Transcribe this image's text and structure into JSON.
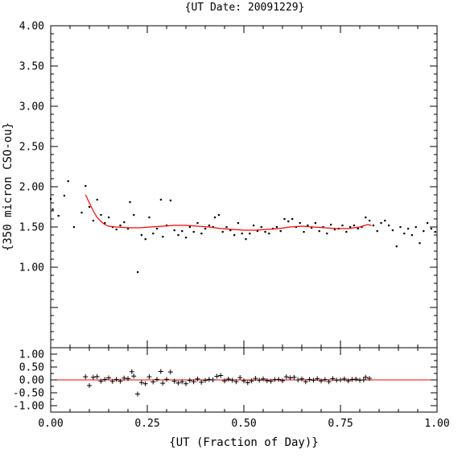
{
  "chart_data": [
    {
      "type": "scatter",
      "panel": "main",
      "title": "{UT Date: 20091229}",
      "xlabel": "",
      "ylabel": "{350 micron CSO-ou}",
      "xlim": [
        0.0,
        1.0
      ],
      "ylim": [
        0.0,
        4.0
      ],
      "yticks": [
        "1.00",
        "1.50",
        "2.00",
        "2.50",
        "3.00",
        "3.50",
        "4.00"
      ],
      "grid": false,
      "fit_color": "#ff0000",
      "points": [
        [
          0.0,
          1.85
        ],
        [
          0.005,
          1.72
        ],
        [
          0.02,
          1.64
        ],
        [
          0.035,
          1.89
        ],
        [
          0.045,
          2.07
        ],
        [
          0.06,
          1.5
        ],
        [
          0.08,
          1.68
        ],
        [
          0.09,
          2.01
        ],
        [
          0.1,
          1.75
        ],
        [
          0.11,
          1.58
        ],
        [
          0.12,
          1.84
        ],
        [
          0.13,
          1.65
        ],
        [
          0.14,
          1.55
        ],
        [
          0.15,
          1.62
        ],
        [
          0.16,
          1.5
        ],
        [
          0.17,
          1.47
        ],
        [
          0.18,
          1.52
        ],
        [
          0.19,
          1.56
        ],
        [
          0.2,
          1.48
        ],
        [
          0.205,
          1.81
        ],
        [
          0.215,
          1.65
        ],
        [
          0.225,
          0.94
        ],
        [
          0.235,
          1.4
        ],
        [
          0.245,
          1.35
        ],
        [
          0.255,
          1.62
        ],
        [
          0.265,
          1.42
        ],
        [
          0.275,
          1.48
        ],
        [
          0.285,
          1.84
        ],
        [
          0.29,
          1.38
        ],
        [
          0.3,
          1.52
        ],
        [
          0.31,
          1.83
        ],
        [
          0.32,
          1.46
        ],
        [
          0.33,
          1.4
        ],
        [
          0.34,
          1.45
        ],
        [
          0.35,
          1.37
        ],
        [
          0.36,
          1.5
        ],
        [
          0.37,
          1.44
        ],
        [
          0.38,
          1.55
        ],
        [
          0.39,
          1.42
        ],
        [
          0.4,
          1.48
        ],
        [
          0.41,
          1.52
        ],
        [
          0.42,
          1.5
        ],
        [
          0.425,
          1.62
        ],
        [
          0.435,
          1.65
        ],
        [
          0.445,
          1.44
        ],
        [
          0.455,
          1.5
        ],
        [
          0.465,
          1.46
        ],
        [
          0.475,
          1.4
        ],
        [
          0.485,
          1.55
        ],
        [
          0.495,
          1.42
        ],
        [
          0.505,
          1.35
        ],
        [
          0.515,
          1.42
        ],
        [
          0.525,
          1.52
        ],
        [
          0.535,
          1.45
        ],
        [
          0.545,
          1.5
        ],
        [
          0.555,
          1.44
        ],
        [
          0.565,
          1.42
        ],
        [
          0.575,
          1.48
        ],
        [
          0.585,
          1.5
        ],
        [
          0.595,
          1.45
        ],
        [
          0.605,
          1.6
        ],
        [
          0.615,
          1.57
        ],
        [
          0.625,
          1.6
        ],
        [
          0.635,
          1.5
        ],
        [
          0.645,
          1.55
        ],
        [
          0.655,
          1.44
        ],
        [
          0.665,
          1.52
        ],
        [
          0.675,
          1.49
        ],
        [
          0.685,
          1.55
        ],
        [
          0.695,
          1.45
        ],
        [
          0.705,
          1.5
        ],
        [
          0.715,
          1.42
        ],
        [
          0.725,
          1.53
        ],
        [
          0.735,
          1.47
        ],
        [
          0.745,
          1.48
        ],
        [
          0.755,
          1.52
        ],
        [
          0.765,
          1.44
        ],
        [
          0.775,
          1.5
        ],
        [
          0.785,
          1.52
        ],
        [
          0.795,
          1.48
        ],
        [
          0.805,
          1.5
        ],
        [
          0.815,
          1.62
        ],
        [
          0.825,
          1.58
        ],
        [
          0.835,
          1.52
        ],
        [
          0.845,
          1.45
        ],
        [
          0.855,
          1.55
        ],
        [
          0.865,
          1.58
        ],
        [
          0.875,
          1.52
        ],
        [
          0.885,
          1.46
        ],
        [
          0.895,
          1.26
        ],
        [
          0.905,
          1.5
        ],
        [
          0.915,
          1.42
        ],
        [
          0.925,
          1.48
        ],
        [
          0.935,
          1.4
        ],
        [
          0.945,
          1.5
        ],
        [
          0.955,
          1.3
        ],
        [
          0.965,
          1.45
        ],
        [
          0.975,
          1.55
        ],
        [
          0.985,
          1.48
        ],
        [
          0.995,
          1.44
        ]
      ],
      "fit": [
        [
          0.09,
          1.9
        ],
        [
          0.1,
          1.8
        ],
        [
          0.11,
          1.7
        ],
        [
          0.12,
          1.62
        ],
        [
          0.13,
          1.57
        ],
        [
          0.14,
          1.53
        ],
        [
          0.15,
          1.51
        ],
        [
          0.17,
          1.5
        ],
        [
          0.2,
          1.49
        ],
        [
          0.23,
          1.49
        ],
        [
          0.26,
          1.5
        ],
        [
          0.29,
          1.51
        ],
        [
          0.32,
          1.52
        ],
        [
          0.35,
          1.52
        ],
        [
          0.38,
          1.51
        ],
        [
          0.41,
          1.5
        ],
        [
          0.44,
          1.48
        ],
        [
          0.47,
          1.47
        ],
        [
          0.5,
          1.46
        ],
        [
          0.53,
          1.46
        ],
        [
          0.56,
          1.47
        ],
        [
          0.59,
          1.48
        ],
        [
          0.62,
          1.5
        ],
        [
          0.65,
          1.51
        ],
        [
          0.68,
          1.5
        ],
        [
          0.71,
          1.49
        ],
        [
          0.74,
          1.48
        ],
        [
          0.77,
          1.48
        ],
        [
          0.8,
          1.5
        ],
        [
          0.82,
          1.53
        ],
        [
          0.83,
          1.52
        ]
      ]
    },
    {
      "type": "scatter",
      "panel": "residual",
      "title": "",
      "xlabel": "{UT (Fraction of Day)}",
      "ylabel": "",
      "xlim": [
        0.0,
        1.0
      ],
      "ylim": [
        -1.25,
        1.25
      ],
      "xticks": [
        "0.00",
        "0.25",
        "0.50",
        "0.75",
        "1.00"
      ],
      "yticks": [
        "-1.00",
        "-0.50",
        "0.00",
        "0.50",
        "1.00"
      ],
      "grid": false,
      "zero_line_color": "#ff0000",
      "points": [
        [
          0.09,
          0.12
        ],
        [
          0.1,
          -0.22
        ],
        [
          0.11,
          0.1
        ],
        [
          0.12,
          0.13
        ],
        [
          0.13,
          -0.05
        ],
        [
          0.14,
          0.02
        ],
        [
          0.15,
          0.08
        ],
        [
          0.16,
          -0.06
        ],
        [
          0.17,
          0.02
        ],
        [
          0.18,
          -0.05
        ],
        [
          0.19,
          0.07
        ],
        [
          0.2,
          0.05
        ],
        [
          0.21,
          0.32
        ],
        [
          0.215,
          0.15
        ],
        [
          0.225,
          -0.55
        ],
        [
          0.235,
          -0.1
        ],
        [
          0.245,
          -0.15
        ],
        [
          0.255,
          0.12
        ],
        [
          0.265,
          -0.08
        ],
        [
          0.275,
          0.02
        ],
        [
          0.285,
          0.33
        ],
        [
          0.29,
          -0.13
        ],
        [
          0.3,
          0.02
        ],
        [
          0.31,
          0.31
        ],
        [
          0.32,
          -0.05
        ],
        [
          0.33,
          -0.12
        ],
        [
          0.34,
          -0.07
        ],
        [
          0.35,
          -0.15
        ],
        [
          0.36,
          -0.02
        ],
        [
          0.37,
          -0.07
        ],
        [
          0.38,
          0.04
        ],
        [
          0.39,
          -0.09
        ],
        [
          0.4,
          -0.02
        ],
        [
          0.41,
          0.02
        ],
        [
          0.42,
          0.0
        ],
        [
          0.43,
          0.14
        ],
        [
          0.44,
          0.17
        ],
        [
          0.45,
          -0.04
        ],
        [
          0.46,
          0.03
        ],
        [
          0.47,
          -0.01
        ],
        [
          0.48,
          -0.07
        ],
        [
          0.49,
          0.09
        ],
        [
          0.5,
          -0.04
        ],
        [
          0.51,
          -0.11
        ],
        [
          0.52,
          -0.04
        ],
        [
          0.53,
          0.06
        ],
        [
          0.54,
          -0.01
        ],
        [
          0.55,
          0.04
        ],
        [
          0.56,
          -0.03
        ],
        [
          0.57,
          -0.05
        ],
        [
          0.58,
          0.01
        ],
        [
          0.59,
          0.02
        ],
        [
          0.6,
          -0.03
        ],
        [
          0.61,
          0.12
        ],
        [
          0.62,
          0.08
        ],
        [
          0.63,
          0.1
        ],
        [
          0.64,
          0.0
        ],
        [
          0.65,
          0.04
        ],
        [
          0.66,
          -0.07
        ],
        [
          0.67,
          0.02
        ],
        [
          0.68,
          -0.01
        ],
        [
          0.69,
          0.05
        ],
        [
          0.7,
          -0.04
        ],
        [
          0.71,
          0.01
        ],
        [
          0.72,
          -0.07
        ],
        [
          0.73,
          0.05
        ],
        [
          0.74,
          -0.01
        ],
        [
          0.75,
          0.0
        ],
        [
          0.76,
          0.04
        ],
        [
          0.77,
          -0.04
        ],
        [
          0.78,
          0.02
        ],
        [
          0.79,
          0.03
        ],
        [
          0.8,
          -0.01
        ],
        [
          0.81,
          0.0
        ],
        [
          0.815,
          0.1
        ],
        [
          0.825,
          0.06
        ]
      ]
    }
  ]
}
